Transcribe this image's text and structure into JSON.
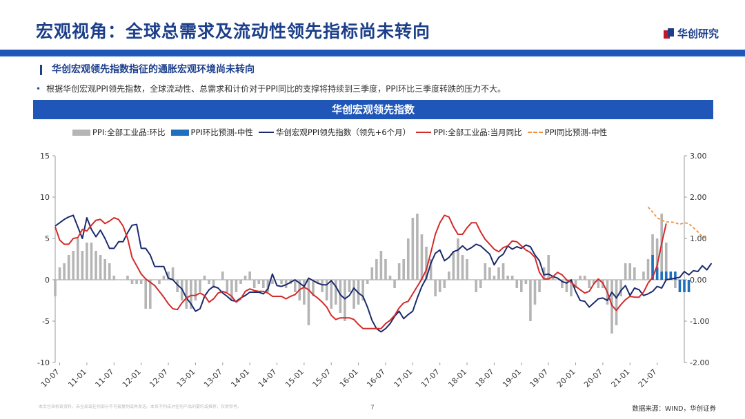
{
  "header": {
    "title": "宏观视角：全球总需求及流动性领先指标尚未转向",
    "logo_text": "华创研究"
  },
  "section": {
    "subheading": "华创宏观领先指数指征的通胀宏观环境尚未转向",
    "bullet": "根据华创宏观PPI领先指数，全球流动性、总需求和计价对于PPI同比的支撑将持续到三季度，PPI环比三季度转跌的压力不大。"
  },
  "chart_data": {
    "type": "line",
    "title": "华创宏观领先指数",
    "x_tick_labels": [
      "10-07",
      "11-01",
      "11-07",
      "12-01",
      "12-07",
      "13-01",
      "13-07",
      "14-01",
      "14-07",
      "15-01",
      "15-07",
      "16-01",
      "16-07",
      "17-01",
      "17-07",
      "18-01",
      "18-07",
      "19-01",
      "19-07",
      "20-01",
      "20-07",
      "21-01",
      "21-07"
    ],
    "x_range": [
      "2010-06",
      "2022-01"
    ],
    "y_left": {
      "range": [
        -10,
        15
      ],
      "ticks": [
        "-10",
        "-5",
        "0",
        "5",
        "10",
        "15"
      ]
    },
    "y_right": {
      "range": [
        -2.0,
        3.0
      ],
      "ticks": [
        "-2.00",
        "-1.00",
        "0.00",
        "1.00",
        "2.00",
        "3.00"
      ]
    },
    "grid": false,
    "legend_position": "top",
    "series": [
      {
        "name": "PPI:全部工业品:环比",
        "kind": "bar",
        "axis": "right",
        "color": "#b5b5b5",
        "start": "2010-06",
        "values": [
          -0.4,
          0.3,
          0.4,
          0.6,
          0.7,
          1.0,
          0.7,
          0.9,
          0.9,
          0.7,
          0.6,
          0.5,
          0.4,
          0.1,
          0,
          0,
          0.1,
          -0.1,
          -0.1,
          -0.1,
          -0.7,
          -0.7,
          0,
          -0.1,
          0.1,
          0.2,
          0.3,
          -0.3,
          -0.5,
          -0.7,
          -0.7,
          -0.5,
          -0.3,
          0.1,
          -0.1,
          -0.2,
          0,
          0.2,
          -0.3,
          -0.5,
          -0.3,
          -0.1,
          0.1,
          0.2,
          -0.2,
          -0.1,
          -0.2,
          -0.3,
          -0.1,
          0,
          -0.1,
          -0.2,
          -0.1,
          -0.3,
          -0.5,
          -0.6,
          -1.1,
          -0.4,
          -0.1,
          -0.3,
          -0.5,
          -0.7,
          -0.6,
          -0.8,
          -1.0,
          -0.3,
          -0.7,
          -0.6,
          -0.5,
          -0.1,
          0.3,
          0.5,
          0.7,
          0.5,
          0.1,
          -0.2,
          0.4,
          0.5,
          1.0,
          1.5,
          1.6,
          1.1,
          0.8,
          0.5,
          -0.4,
          -0.3,
          -0.2,
          0.2,
          0.7,
          1.0,
          0.6,
          0.5,
          0,
          -0.3,
          -0.2,
          0.4,
          0.3,
          0.1,
          0.3,
          0.4,
          0.1,
          0.1,
          -0.2,
          -0.3,
          -0.1,
          -1.0,
          -0.6,
          -0.3,
          0.3,
          0.6,
          0.1,
          0,
          -0.2,
          -0.3,
          -0.4,
          -0.2,
          0.1,
          0.1,
          -0.2,
          -0.1,
          -0.2,
          -0.2,
          -0.6,
          -1.3,
          -1.1,
          -0.4,
          0.4,
          0.4,
          0.3,
          0,
          0.2,
          0.5,
          1.1,
          1.0,
          1.6,
          0.9,
          0.1,
          -0.2
        ],
        "forecast": {
          "name": "PPI环比预测-中性",
          "color": "#1f6fbf",
          "start": "2021-06",
          "values": [
            0.6,
            0.3,
            0.2,
            0.2,
            0.2,
            0.2,
            -0.3,
            -0.3,
            -0.3
          ]
        }
      },
      {
        "name": "华创宏观PPI领先指数（领先+6个月）",
        "kind": "line",
        "axis": "left",
        "color": "#1a2a6c",
        "start": "2010-06",
        "values": [
          6.5,
          6.9,
          7.3,
          7.6,
          7.8,
          6.4,
          5.0,
          7.5,
          6.1,
          5.2,
          6.0,
          5.0,
          3.8,
          3.8,
          4.6,
          4.6,
          5.7,
          6.6,
          6.7,
          3.8,
          3.8,
          3.0,
          1.6,
          1.6,
          1.6,
          0.2,
          0,
          -0.6,
          -1.1,
          -2.2,
          -2.9,
          -3.8,
          -3.5,
          -2.0,
          -1.2,
          -0.8,
          -1.0,
          -1.6,
          -2.0,
          -2.5,
          -2.6,
          -2.2,
          -1.9,
          -1.5,
          -1.5,
          -1.5,
          -1.7,
          -1.1,
          0.7,
          -0.7,
          -0.8,
          -0.6,
          -0.3,
          0,
          -0.4,
          -0.8,
          0.2,
          -0.1,
          -0.4,
          -0.6,
          -0.6,
          -0.1,
          -0.8,
          -1.8,
          -2.3,
          -1.9,
          -1.0,
          -1.6,
          -2.0,
          -3.3,
          -4.9,
          -5.9,
          -6.3,
          -5.9,
          -5.3,
          -4.4,
          -3.8,
          -4.7,
          -4.2,
          -3.8,
          -2.2,
          -0.8,
          0.2,
          2.0,
          3.2,
          3.6,
          2.3,
          2.7,
          3.4,
          3.6,
          4.1,
          3.6,
          3.9,
          4.3,
          4.1,
          3.6,
          3.1,
          1.8,
          2.7,
          3.1,
          4.1,
          3.7,
          4.0,
          3.8,
          4.2,
          4.0,
          3.0,
          2.3,
          0.6,
          0.7,
          0.4,
          0.2,
          -0.2,
          -0.4,
          0,
          -1.4,
          -2.5,
          -2.6,
          -3.3,
          -2.8,
          -2.3,
          -2.2,
          -2.5,
          -1.5,
          -2.2,
          -1.3,
          -0.7,
          -1.9,
          -1.0,
          -1.2,
          -1.9,
          -1.7,
          -1.4,
          -0.8,
          -1.0,
          0,
          0.1,
          0.2,
          0.3,
          1.0,
          0.6,
          1.1,
          1.0,
          1.7,
          1.2,
          2.0
        ],
        "forecast": null
      },
      {
        "name": "PPI:全部工业品:当月同比",
        "kind": "line",
        "axis": "left",
        "color": "#d42a2a",
        "start": "2010-06",
        "values": [
          6.4,
          4.8,
          4.3,
          4.3,
          5.0,
          5.1,
          6.1,
          5.9,
          6.6,
          7.2,
          7.3,
          6.8,
          7.1,
          7.5,
          7.3,
          6.5,
          5.0,
          2.7,
          1.7,
          0.7,
          0.1,
          -0.3,
          -0.7,
          -1.4,
          -2.1,
          -2.9,
          -3.5,
          -3.6,
          -2.8,
          -2.2,
          -1.9,
          -1.9,
          -1.6,
          -1.9,
          -2.7,
          -2.3,
          -1.6,
          -1.4,
          -1.6,
          -2.0,
          -2.7,
          -2.3,
          -1.4,
          -1.1,
          -1.3,
          -1.4,
          -1.4,
          -1.6,
          -2.0,
          -2.0,
          -2.0,
          -2.3,
          -2.0,
          -1.8,
          -1.2,
          -0.9,
          -1.2,
          -1.8,
          -2.2,
          -2.7,
          -3.3,
          -4.3,
          -4.8,
          -4.6,
          -4.6,
          -4.6,
          -4.8,
          -5.4,
          -5.9,
          -5.9,
          -5.9,
          -5.9,
          -5.9,
          -5.3,
          -4.9,
          -4.3,
          -3.4,
          -2.8,
          -2.6,
          -1.7,
          -0.8,
          0.1,
          1.2,
          3.3,
          5.5,
          6.9,
          7.8,
          7.6,
          6.4,
          5.5,
          5.5,
          6.3,
          6.9,
          6.9,
          5.8,
          4.9,
          4.3,
          3.7,
          3.4,
          3.9,
          4.1,
          4.7,
          4.6,
          4.1,
          3.6,
          3.3,
          2.7,
          0.9,
          0.1,
          0.1,
          0.4,
          0.9,
          0.6,
          0,
          -0.3,
          -0.8,
          -1.2,
          -1.6,
          -1.4,
          -0.5,
          0.1,
          -0.4,
          -1.5,
          -3.1,
          -3.7,
          -3.0,
          -2.4,
          -2.0,
          -2.1,
          -2.1,
          -1.5,
          -0.4,
          0.3,
          1.7,
          4.4,
          6.8
        ],
        "forecast": {
          "name": "PPI同比预测-中性",
          "color": "#f0923a",
          "start": "2021-05",
          "values": [
            8.8,
            8.2,
            7.5,
            7.2,
            7.0,
            7.0,
            6.9,
            6.7,
            6.9,
            6.8,
            6.3,
            5.8,
            5.2,
            5.0
          ]
        }
      }
    ]
  },
  "footer": {
    "disclaimer": "本页包含机密资料，未全部或任何部分不可被复制或再发送。本页不构成对任何产品的要约或推荐，仅供参考。",
    "page": "7",
    "source": "数据来源：WIND，华创证券"
  }
}
